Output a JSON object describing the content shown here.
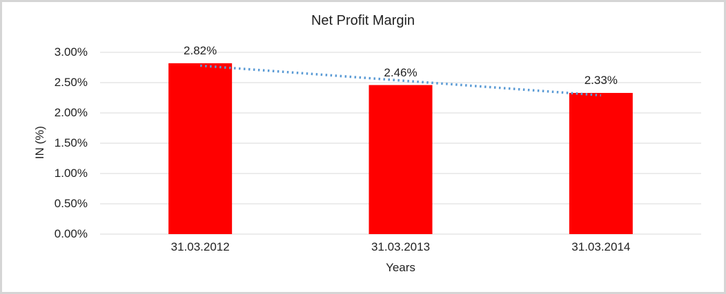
{
  "chart_data": {
    "type": "bar",
    "title": "Net Profit Margin",
    "categories": [
      "31.03.2012",
      "31.03.2013",
      "31.03.2014"
    ],
    "values": [
      2.82,
      2.46,
      2.33
    ],
    "data_labels": [
      "2.82%",
      "2.46%",
      "2.33%"
    ],
    "xlabel": "Years",
    "ylabel": "IN (%)",
    "ylim": [
      0,
      3
    ],
    "ytick_step": 0.5,
    "ytick_labels": [
      "0.00%",
      "0.50%",
      "1.00%",
      "1.50%",
      "2.00%",
      "2.50%",
      "3.00%"
    ],
    "grid": true,
    "legend": "none",
    "bar_color": "#FF0000",
    "gridline_color": "#D9D9D9",
    "text_color": "#222222",
    "trendline": {
      "type": "linear",
      "style": "dotted",
      "color": "#5B9BD5",
      "start_value": 2.78,
      "end_value": 2.29
    }
  }
}
